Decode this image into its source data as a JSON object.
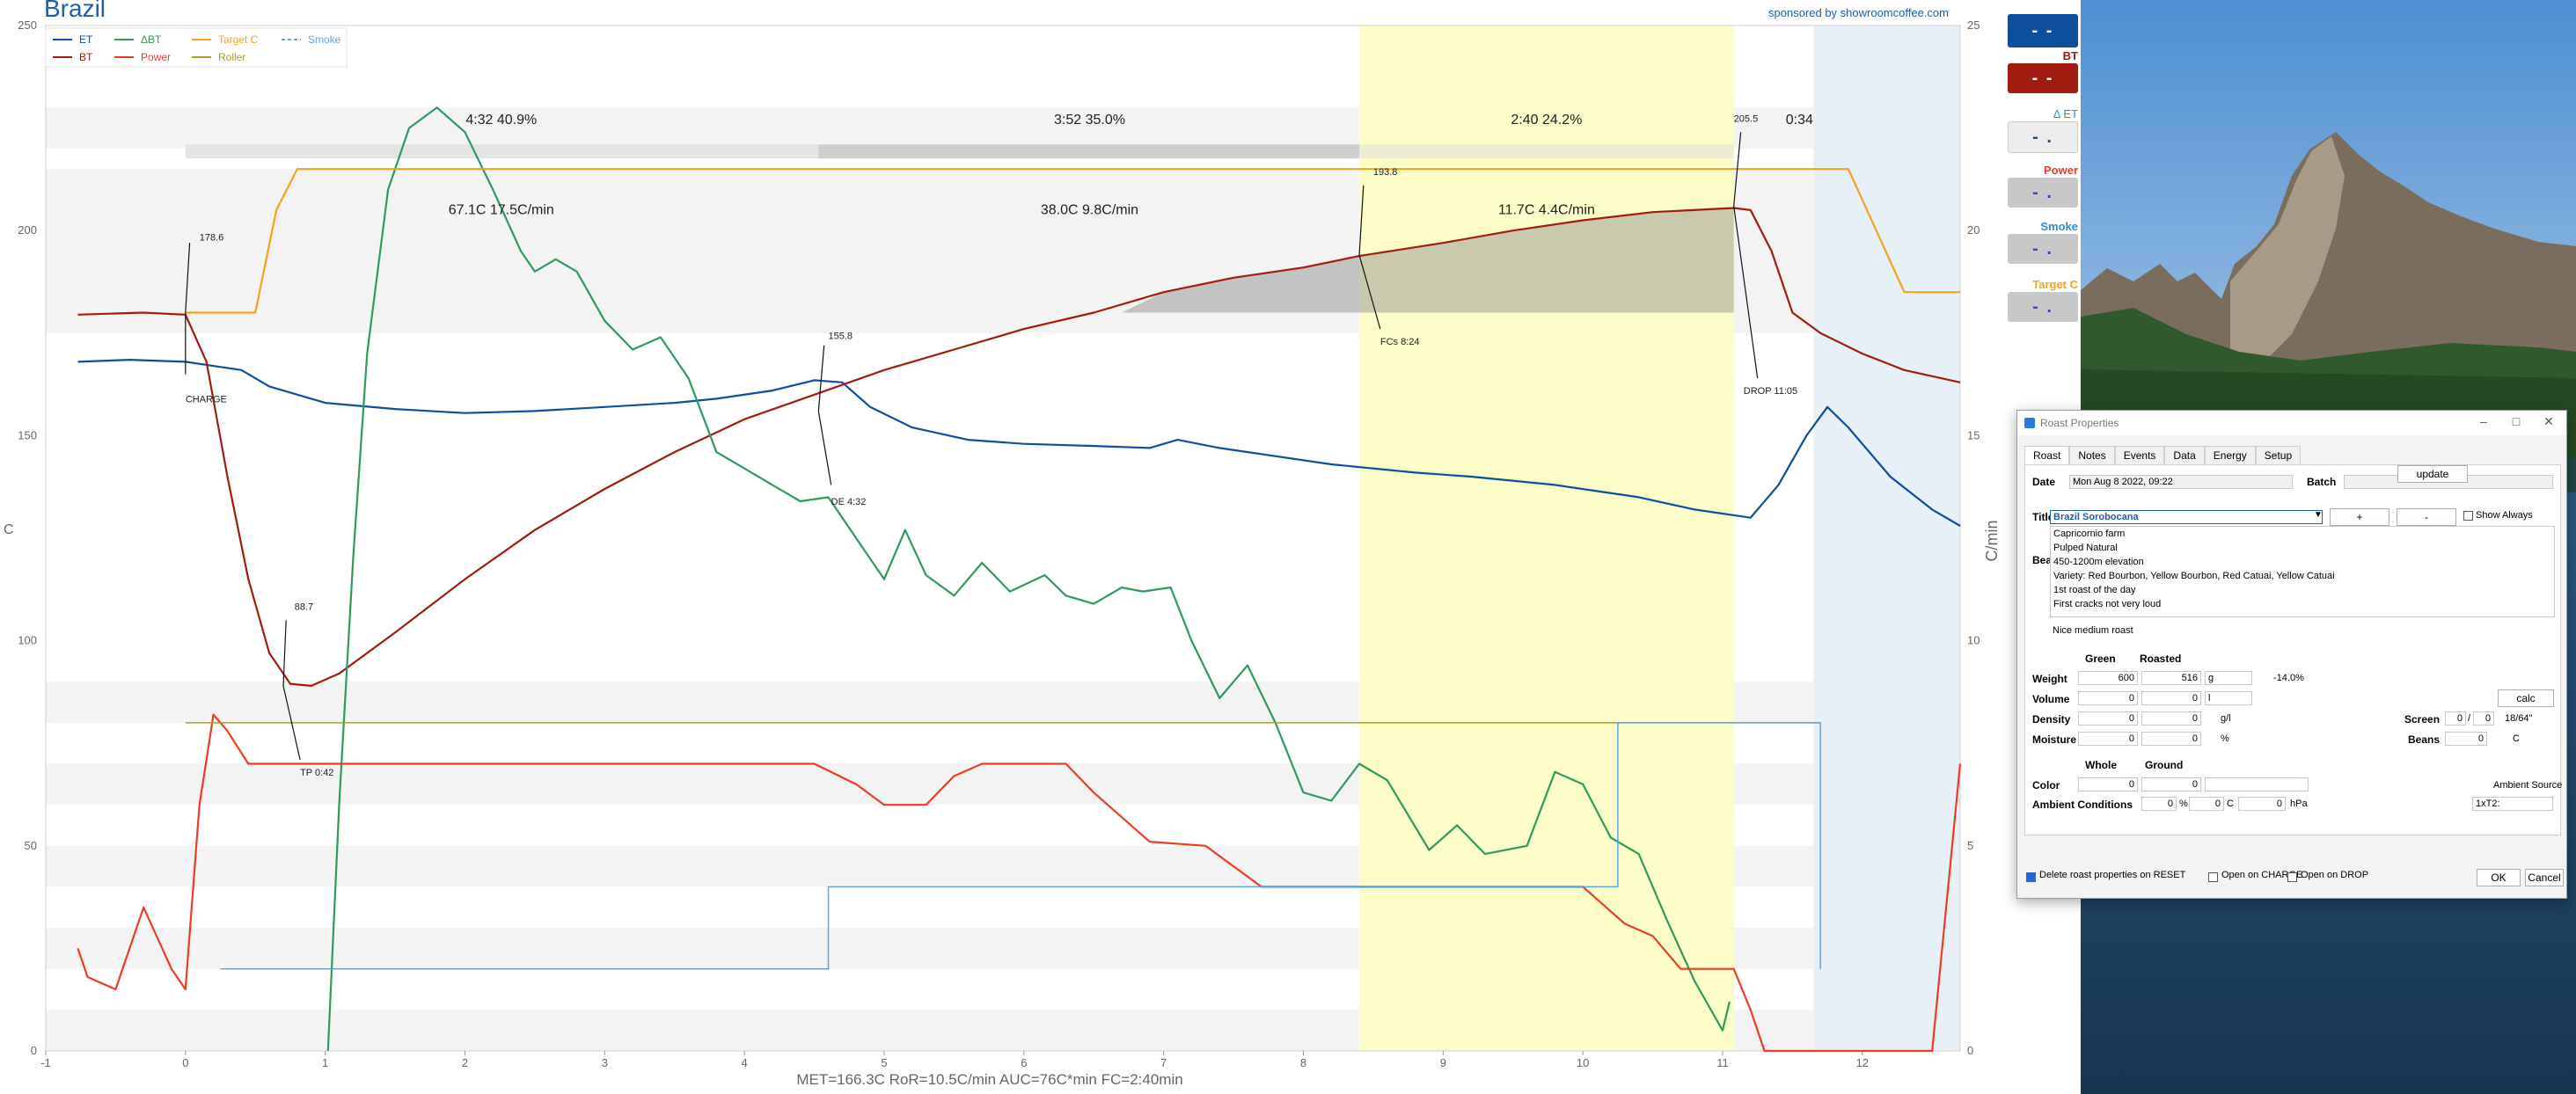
{
  "app": {
    "title": "Brazil",
    "sponsor": "sponsored by showroomcoffee.com",
    "stats_line": "MET=166.3C   RoR=10.5C/min   AUC=76C*min   FC=2:40min"
  },
  "legend": [
    {
      "label": "ET",
      "color": "#0d4f9c"
    },
    {
      "label": "BT",
      "color": "#a01c0f"
    },
    {
      "label": "ΔBT",
      "color": "#2e9a5e"
    },
    {
      "label": "Power",
      "color": "#ee3b24"
    },
    {
      "label": "Target C",
      "color": "#f4a31f"
    },
    {
      "label": "Roller",
      "color": "#a6a320"
    },
    {
      "label": "Smoke",
      "color": "#5aa6e8"
    }
  ],
  "phases": [
    {
      "time": "4:32",
      "pct": "40.9%",
      "delta": "67.1C",
      "ror": "17.5C/min"
    },
    {
      "time": "3:52",
      "pct": "35.0%",
      "delta": "38.0C",
      "ror": "9.8C/min"
    },
    {
      "time": "2:40",
      "pct": "24.2%",
      "delta": "11.7C",
      "ror": "4.4C/min"
    }
  ],
  "drop_phase_time": "0:34",
  "annotations": [
    {
      "value": "178.6",
      "event": "CHARGE",
      "t": 0.0
    },
    {
      "value": "88.7",
      "event": "TP 0:42",
      "t": 0.7
    },
    {
      "value": "155.8",
      "event": "DE 4:32",
      "t": 4.533
    },
    {
      "value": "193.8",
      "event": "FCs 8:24",
      "t": 8.4
    },
    {
      "value": "205.5",
      "event": "DROP 11:05",
      "t": 11.083
    }
  ],
  "axes": {
    "x_ticks": [
      "-1",
      "0",
      "1",
      "2",
      "3",
      "4",
      "5",
      "6",
      "7",
      "8",
      "9",
      "10",
      "11",
      "12"
    ],
    "y_left_ticks": [
      "0",
      "50",
      "100",
      "150",
      "200",
      "250"
    ],
    "y_right_ticks": [
      "0",
      "5",
      "10",
      "15",
      "20",
      "25"
    ],
    "y_left_label": "C",
    "y_right_label": "C/min"
  },
  "lcd": [
    {
      "label": "",
      "value": "- -",
      "color": "#0d4f9c"
    },
    {
      "label": "BT",
      "value": "- -",
      "color": "#a01c0f"
    },
    {
      "label": "Δ ET",
      "value": "- .",
      "color": "#2a8fd6"
    },
    {
      "label": "Power",
      "value": "- .",
      "color": "#ee3b24"
    },
    {
      "label": "Smoke",
      "value": "- .",
      "color": "#2a8fd6"
    },
    {
      "label": "Target C",
      "value": "- .",
      "color": "#f4a31f"
    }
  ],
  "chart_data": {
    "type": "line",
    "title": "Brazil",
    "xlabel": "",
    "ylabel": "C",
    "y2label": "C/min",
    "xlim": [
      -1,
      12.7
    ],
    "ylim": [
      0,
      250
    ],
    "y2lim": [
      0,
      25
    ],
    "series": [
      {
        "name": "ET",
        "color": "#0d4f9c",
        "axis": "left",
        "points": [
          [
            -0.77,
            168
          ],
          [
            -0.4,
            168.5
          ],
          [
            0,
            168
          ],
          [
            0.4,
            166
          ],
          [
            0.6,
            162
          ],
          [
            1,
            158
          ],
          [
            1.5,
            156.5
          ],
          [
            2,
            155.5
          ],
          [
            2.5,
            156
          ],
          [
            3,
            157
          ],
          [
            3.5,
            158
          ],
          [
            3.8,
            159
          ],
          [
            4.2,
            161
          ],
          [
            4.5,
            163.5
          ],
          [
            4.7,
            163
          ],
          [
            4.9,
            157
          ],
          [
            5.2,
            152
          ],
          [
            5.6,
            149
          ],
          [
            6,
            148
          ],
          [
            6.5,
            147.5
          ],
          [
            6.9,
            147
          ],
          [
            7.1,
            149
          ],
          [
            7.4,
            147
          ],
          [
            7.8,
            145
          ],
          [
            8.2,
            143
          ],
          [
            8.8,
            141
          ],
          [
            9.2,
            140
          ],
          [
            9.8,
            138
          ],
          [
            10.4,
            135
          ],
          [
            10.8,
            132
          ],
          [
            11.2,
            130
          ],
          [
            11.4,
            138
          ],
          [
            11.6,
            150
          ],
          [
            11.75,
            157
          ],
          [
            11.9,
            152
          ],
          [
            12.2,
            140
          ],
          [
            12.5,
            132
          ],
          [
            12.7,
            128
          ]
        ]
      },
      {
        "name": "BT",
        "color": "#a01c0f",
        "axis": "left",
        "points": [
          [
            -0.77,
            179.5
          ],
          [
            -0.3,
            180
          ],
          [
            0,
            179.5
          ],
          [
            0.15,
            168
          ],
          [
            0.3,
            140
          ],
          [
            0.45,
            115
          ],
          [
            0.6,
            97
          ],
          [
            0.75,
            89.5
          ],
          [
            0.9,
            89
          ],
          [
            1.1,
            92
          ],
          [
            1.5,
            102
          ],
          [
            2,
            115
          ],
          [
            2.5,
            127
          ],
          [
            3,
            137
          ],
          [
            3.5,
            146
          ],
          [
            4,
            154
          ],
          [
            4.5,
            160
          ],
          [
            5,
            166
          ],
          [
            5.5,
            171
          ],
          [
            6,
            176
          ],
          [
            6.5,
            180
          ],
          [
            7,
            185
          ],
          [
            7.5,
            188.5
          ],
          [
            8,
            191
          ],
          [
            8.4,
            193.8
          ],
          [
            9,
            197
          ],
          [
            9.5,
            200
          ],
          [
            10,
            202.5
          ],
          [
            10.5,
            204.5
          ],
          [
            11.08,
            205.5
          ],
          [
            11.2,
            205
          ],
          [
            11.35,
            195
          ],
          [
            11.5,
            180
          ],
          [
            11.7,
            175
          ],
          [
            12,
            170
          ],
          [
            12.3,
            166
          ],
          [
            12.7,
            163
          ]
        ]
      },
      {
        "name": "ΔBT",
        "color": "#2e9a5e",
        "axis": "right",
        "points": [
          [
            1.02,
            0
          ],
          [
            1.1,
            6
          ],
          [
            1.2,
            12
          ],
          [
            1.3,
            17
          ],
          [
            1.45,
            21
          ],
          [
            1.6,
            22.5
          ],
          [
            1.8,
            23
          ],
          [
            2,
            22.4
          ],
          [
            2.2,
            21
          ],
          [
            2.4,
            19.5
          ],
          [
            2.5,
            19
          ],
          [
            2.65,
            19.3
          ],
          [
            2.8,
            19
          ],
          [
            3,
            17.8
          ],
          [
            3.2,
            17.1
          ],
          [
            3.4,
            17.4
          ],
          [
            3.6,
            16.4
          ],
          [
            3.8,
            14.6
          ],
          [
            4,
            14.2
          ],
          [
            4.2,
            13.8
          ],
          [
            4.4,
            13.4
          ],
          [
            4.6,
            13.5
          ],
          [
            4.8,
            12.5
          ],
          [
            5,
            11.5
          ],
          [
            5.15,
            12.7
          ],
          [
            5.3,
            11.6
          ],
          [
            5.5,
            11.1
          ],
          [
            5.7,
            11.9
          ],
          [
            5.9,
            11.2
          ],
          [
            6.15,
            11.6
          ],
          [
            6.3,
            11.1
          ],
          [
            6.5,
            10.9
          ],
          [
            6.7,
            11.3
          ],
          [
            6.85,
            11.2
          ],
          [
            7.05,
            11.3
          ],
          [
            7.2,
            10
          ],
          [
            7.4,
            8.6
          ],
          [
            7.6,
            9.4
          ],
          [
            7.8,
            8
          ],
          [
            8,
            6.3
          ],
          [
            8.2,
            6.1
          ],
          [
            8.4,
            7
          ],
          [
            8.6,
            6.6
          ],
          [
            8.9,
            4.9
          ],
          [
            9.1,
            5.5
          ],
          [
            9.3,
            4.8
          ],
          [
            9.6,
            5
          ],
          [
            9.8,
            6.8
          ],
          [
            10,
            6.5
          ],
          [
            10.2,
            5.2
          ],
          [
            10.4,
            4.8
          ],
          [
            10.6,
            3.2
          ],
          [
            10.8,
            1.7
          ],
          [
            11,
            0.5
          ],
          [
            11.05,
            1.2
          ]
        ]
      },
      {
        "name": "Power",
        "color": "#ee3b24",
        "axis": "right",
        "points": [
          [
            -0.77,
            2.5
          ],
          [
            -0.7,
            1.8
          ],
          [
            -0.5,
            1.5
          ],
          [
            -0.3,
            3.5
          ],
          [
            -0.1,
            2
          ],
          [
            0,
            1.5
          ],
          [
            0.1,
            6
          ],
          [
            0.2,
            8.2
          ],
          [
            0.3,
            7.8
          ],
          [
            0.45,
            7
          ],
          [
            2,
            7
          ],
          [
            3,
            7
          ],
          [
            4.5,
            7
          ],
          [
            4.8,
            6.5
          ],
          [
            5,
            6
          ],
          [
            5.3,
            6
          ],
          [
            5.5,
            6.7
          ],
          [
            5.7,
            7
          ],
          [
            6.3,
            7
          ],
          [
            6.5,
            6.3
          ],
          [
            6.7,
            5.7
          ],
          [
            6.9,
            5.1
          ],
          [
            7.3,
            5
          ],
          [
            7.5,
            4.5
          ],
          [
            7.7,
            4
          ],
          [
            10,
            4
          ],
          [
            10.3,
            3.1
          ],
          [
            10.5,
            2.8
          ],
          [
            10.7,
            2
          ],
          [
            11.08,
            2
          ],
          [
            11.2,
            1
          ],
          [
            11.3,
            0
          ],
          [
            12.5,
            0
          ],
          [
            12.7,
            7
          ]
        ]
      },
      {
        "name": "Target C",
        "color": "#f4a31f",
        "axis": "left",
        "points": [
          [
            0,
            180
          ],
          [
            0.5,
            180
          ],
          [
            0.65,
            205
          ],
          [
            0.8,
            215
          ],
          [
            11.9,
            215
          ],
          [
            12.1,
            200
          ],
          [
            12.3,
            185
          ],
          [
            12.7,
            185
          ]
        ]
      },
      {
        "name": "Roller",
        "color": "#a6a320",
        "axis": "right",
        "points": [
          [
            0,
            8
          ],
          [
            11.7,
            8
          ]
        ]
      },
      {
        "name": "Smoke",
        "color": "#5aa6e8",
        "axis": "right",
        "points": [
          [
            0.25,
            2
          ],
          [
            4.6,
            2
          ],
          [
            4.6,
            4
          ],
          [
            10.25,
            4
          ],
          [
            10.25,
            8
          ],
          [
            11.7,
            8
          ],
          [
            11.7,
            2
          ]
        ]
      }
    ],
    "phase_bands": [
      [
        8.4,
        11.08,
        "#fdfdc7"
      ],
      [
        11.65,
        12.7,
        "#e7eff7"
      ]
    ]
  },
  "dialog": {
    "title": "Roast Properties",
    "tabs": [
      "Roast",
      "Notes",
      "Events",
      "Data",
      "Energy",
      "Setup"
    ],
    "date_label": "Date",
    "date_value": "Mon Aug 8 2022, 09:22",
    "batch_label": "Batch",
    "title_label": "Title",
    "title_value": "Brazil Sorobocana",
    "plus": "+",
    "minus": "-",
    "show_always": "Show Always",
    "beans_label": "Beans",
    "beans_text": [
      "Capricornio farm",
      "Pulped Natural",
      "450-1200m elevation",
      "Variety: Red Bourbon, Yellow Bourbon, Red Catuai, Yellow Catuai",
      "",
      "1st roast of the day",
      "First cracks not very loud",
      "Nice medium roast"
    ],
    "green": "Green",
    "roasted": "Roasted",
    "weight_label": "Weight",
    "weight_green": "600",
    "weight_roasted": "516",
    "weight_unit": "g",
    "weight_loss": "-14.0%",
    "volume_label": "Volume",
    "volume_green": "0",
    "volume_roasted": "0",
    "volume_unit": "l",
    "calc": "calc",
    "density_label": "Density",
    "density_green": "0",
    "density_roasted": "0",
    "density_unit": "g/l",
    "screen_label": "Screen",
    "screen_a": "0",
    "screen_b": "0",
    "screen_unit": "18/64\"",
    "moisture_label": "Moisture",
    "moisture_green": "0",
    "moisture_roasted": "0",
    "moisture_unit": "%",
    "beans_temp_label": "Beans",
    "beans_temp": "0",
    "beans_temp_unit": "C",
    "whole": "Whole",
    "ground": "Ground",
    "color_label": "Color",
    "color_whole": "0",
    "color_ground": "0",
    "ambient_source": "Ambient Source",
    "ambient_label": "Ambient Conditions",
    "ambient_humidity": "0",
    "ambient_humidity_unit": "%",
    "ambient_temp": "0",
    "ambient_temp_unit": "C",
    "ambient_pressure": "0",
    "ambient_pressure_unit": "hPa",
    "update": "update",
    "source": "1xT2:",
    "cb_reset": "Delete roast properties on RESET",
    "cb_charge": "Open on CHARGE",
    "cb_drop": "Open on DROP",
    "ok": "OK",
    "cancel": "Cancel"
  }
}
